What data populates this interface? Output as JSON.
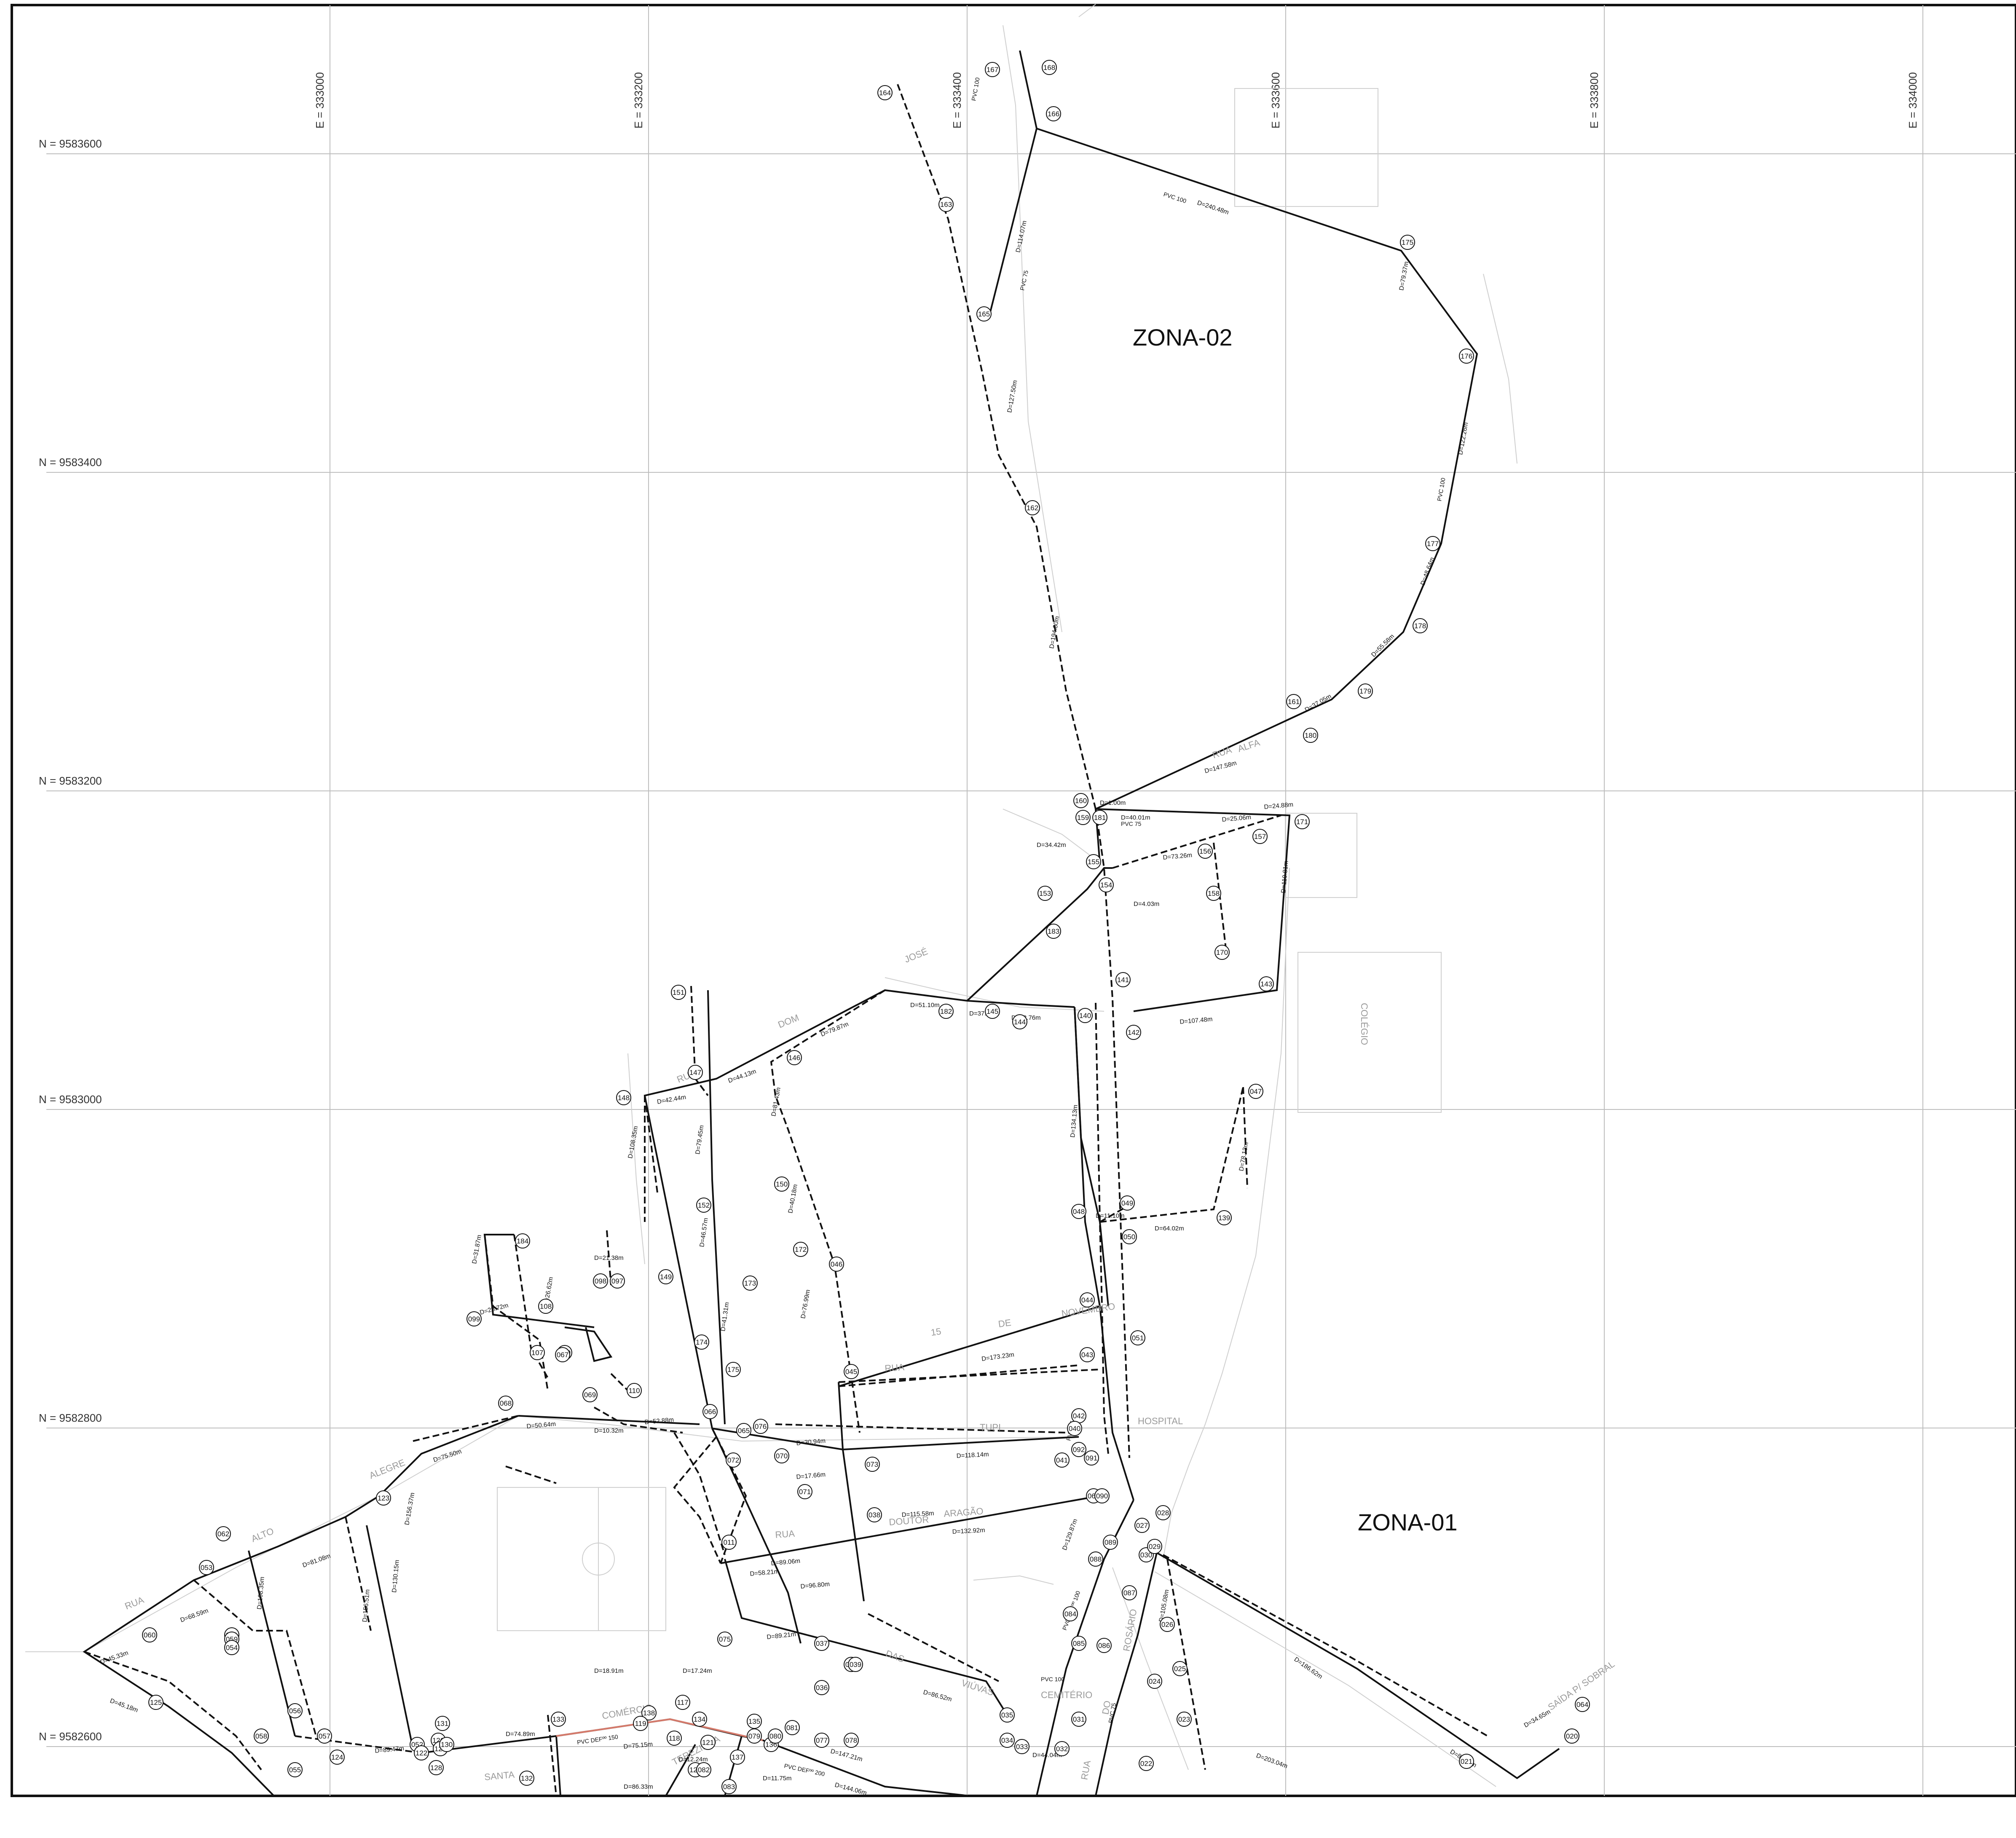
{
  "zones": [
    {
      "label": "ZONA-02"
    },
    {
      "label": "ZONA-01"
    }
  ],
  "grid": {
    "north_labels": [
      "N = 9583600",
      "N = 9583400",
      "N = 9583200",
      "N = 9583000",
      "N = 9582800",
      "N = 9582600"
    ],
    "east_labels": [
      "E = 333000",
      "E = 333200",
      "E = 333400",
      "E = 333600",
      "E = 333800",
      "E = 334000"
    ]
  },
  "streets": [
    "RUA",
    "ALFA",
    "JOSÉ",
    "DOM",
    "RUA",
    "15",
    "DE",
    "NOVEMBRO",
    "RUA",
    "TUPI",
    "DOUTOR",
    "ARAGÃO",
    "RUA",
    "DAS",
    "VIÚVAS",
    "ALTO",
    "ALEGRE",
    "RUA",
    "COMÉRCIO",
    "TEREZINHA",
    "SANTA",
    "ROSÁRIO",
    "DO",
    "RUA",
    "HOSPITAL",
    "CEMITÉRIO",
    "COLÉGIO",
    "SAÍDA P/ SOBRAL"
  ],
  "pipe_labels": [
    "PVC 100",
    "PVC 75",
    "PVC 100",
    "PVC 75",
    "PVC DEFºº 100",
    "PVC DEFºº 150",
    "PVC DEFºº 200",
    "PVC 100",
    "PVC 75",
    "PVC 100",
    "PVC 75"
  ],
  "distances": [
    "D=240.48m",
    "D=114.07m",
    "D=127.50m",
    "D=194.80m",
    "D=79.37m",
    "D=122.26m",
    "D=48.64m",
    "D=55.58m",
    "D=37.05m",
    "D=147.58m",
    "D=40.01m",
    "D=1.00m",
    "D=34.42m",
    "D=73.26m",
    "D=24.88m",
    "D=25.06m",
    "D=110.81m",
    "D=4.03m",
    "D=107.48m",
    "D=37.21m",
    "D=28.76m",
    "D=51.10m",
    "D=79.87m",
    "D=44.13m",
    "D=42.44m",
    "D=108.35m",
    "D=79.45m",
    "D=46.57m",
    "D=41.31m",
    "D=81.43m",
    "D=40.18m",
    "D=76.99m",
    "D=173.23m",
    "D=134.13m",
    "D=78.13m",
    "D=64.02m",
    "D=11.10m",
    "D=52.88m",
    "D=10.32m",
    "D=50.64m",
    "D=75.50m",
    "D=118.14m",
    "D=30.94m",
    "D=17.66m",
    "D=132.92m",
    "D=89.06m",
    "D=89.21m",
    "D=86.52m",
    "D=129.87m",
    "D=105.08m",
    "D=186.62m",
    "D=203.04m",
    "D=80.85m",
    "D=34.65m",
    "D=147.21m",
    "D=144.06m",
    "D=75.15m",
    "D=18.91m",
    "D=17.24m",
    "D=12.24m",
    "D=89.47m",
    "D=74.89m",
    "D=156.51m",
    "D=130.15m",
    "D=108.35m",
    "D=68.59m",
    "D=45.33m",
    "D=45.18m",
    "D=81.08m",
    "D=156.37m",
    "D=31.87m",
    "D=28.72m",
    "D=21.38m",
    "D=26.62m",
    "D=44.04m",
    "D=11.75m",
    "D=86.33m",
    "D=115.58m",
    "D=58.21m",
    "D=96.80m"
  ],
  "nodes": [
    "164",
    "167",
    "168",
    "166",
    "163",
    "165",
    "175",
    "176",
    "177",
    "178",
    "179",
    "180",
    "161",
    "162",
    "160",
    "159",
    "181",
    "171",
    "155",
    "156",
    "157",
    "158",
    "170",
    "153",
    "154",
    "183",
    "141",
    "142",
    "143",
    "140",
    "145",
    "182",
    "144",
    "151",
    "146",
    "147",
    "148",
    "150",
    "152",
    "149",
    "172",
    "046",
    "173",
    "174",
    "175",
    "045",
    "044",
    "043",
    "042",
    "041",
    "040",
    "047",
    "048",
    "049",
    "050",
    "051",
    "139",
    "184",
    "099",
    "097",
    "098",
    "108",
    "107",
    "109",
    "110",
    "069",
    "068",
    "067",
    "066",
    "065",
    "076",
    "070",
    "071",
    "072",
    "073",
    "074",
    "075",
    "011",
    "039",
    "038",
    "037",
    "036",
    "035",
    "034",
    "033",
    "032",
    "031",
    "030",
    "029",
    "028",
    "027",
    "026",
    "025",
    "024",
    "023",
    "022",
    "021",
    "020",
    "064",
    "063",
    "062",
    "061",
    "060",
    "059",
    "058",
    "057",
    "056",
    "055",
    "054",
    "053",
    "052",
    "122",
    "123",
    "124",
    "125",
    "126",
    "127",
    "128",
    "130",
    "131",
    "132",
    "133",
    "134",
    "135",
    "136",
    "137",
    "138",
    "117",
    "118",
    "119",
    "120",
    "121",
    "079",
    "080",
    "081",
    "082",
    "083",
    "077",
    "078",
    "084",
    "085",
    "086",
    "087",
    "088",
    "089",
    "090",
    "091",
    "092",
    "093",
    "094",
    "095",
    "096"
  ]
}
